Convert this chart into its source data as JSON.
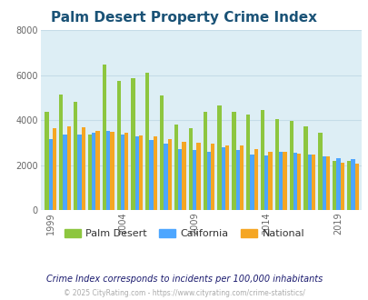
{
  "title": "Palm Desert Property Crime Index",
  "title_color": "#1a5276",
  "plot_bg_color": "#ddeef5",
  "years": [
    1999,
    2000,
    2001,
    2002,
    2003,
    2004,
    2005,
    2006,
    2007,
    2008,
    2009,
    2010,
    2011,
    2012,
    2013,
    2014,
    2015,
    2016,
    2017,
    2018,
    2019,
    2020
  ],
  "palm_desert": [
    4350,
    5150,
    4800,
    3350,
    6450,
    5750,
    5850,
    6100,
    5100,
    3800,
    3650,
    4350,
    4650,
    4380,
    4250,
    4450,
    4050,
    3950,
    3700,
    3450,
    2200,
    2200
  ],
  "california": [
    3150,
    3350,
    3350,
    3450,
    3500,
    3350,
    3280,
    3120,
    2960,
    2720,
    2650,
    2580,
    2780,
    2680,
    2450,
    2420,
    2600,
    2560,
    2450,
    2380,
    2300,
    2280
  ],
  "national": [
    3650,
    3700,
    3680,
    3510,
    3480,
    3450,
    3300,
    3280,
    3150,
    3050,
    2980,
    2950,
    2880,
    2850,
    2700,
    2600,
    2600,
    2520,
    2480,
    2380,
    2100,
    2050
  ],
  "palm_desert_color": "#8dc63f",
  "california_color": "#4da6ff",
  "national_color": "#f5a623",
  "ylim": [
    0,
    8000
  ],
  "yticks": [
    0,
    2000,
    4000,
    6000,
    8000
  ],
  "xtick_years": [
    1999,
    2004,
    2009,
    2014,
    2019
  ],
  "subtitle": "Crime Index corresponds to incidents per 100,000 inhabitants",
  "subtitle_color": "#1a1a6e",
  "footer": "© 2025 CityRating.com - https://www.cityrating.com/crime-statistics/",
  "footer_color": "#aaaaaa",
  "grid_color": "#c5dce8",
  "bar_width": 0.27
}
